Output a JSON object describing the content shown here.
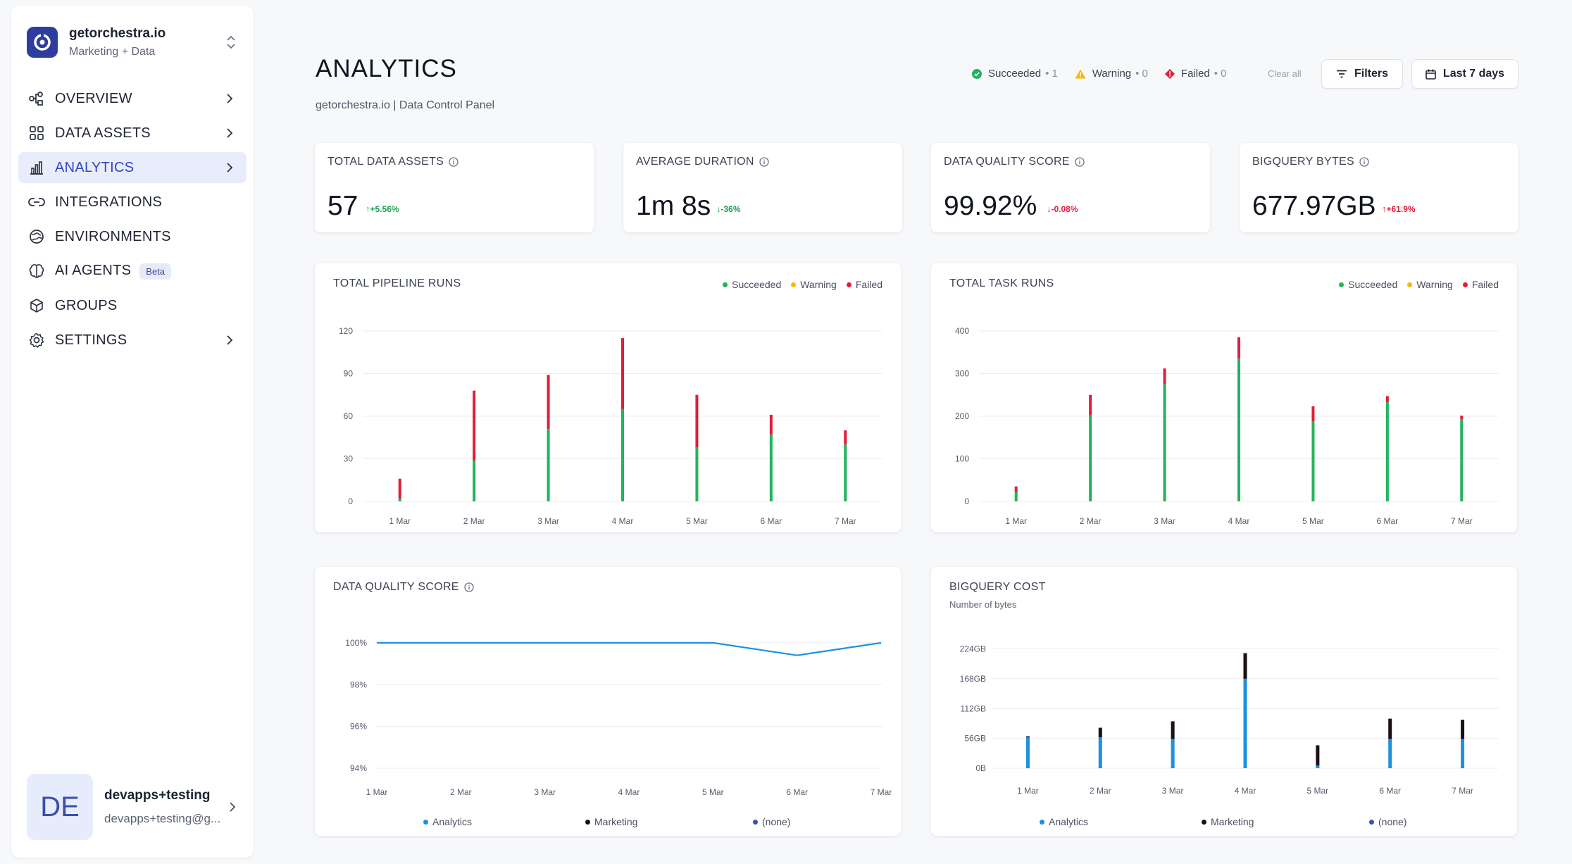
{
  "workspace": {
    "name": "getorchestra.io",
    "subtitle": "Marketing + Data"
  },
  "nav": [
    {
      "label": "OVERVIEW",
      "icon": "overview-icon",
      "has_chevron": true
    },
    {
      "label": "DATA ASSETS",
      "icon": "grid-icon",
      "has_chevron": true
    },
    {
      "label": "ANALYTICS",
      "icon": "bar-chart-icon",
      "has_chevron": true,
      "active": true
    },
    {
      "label": "INTEGRATIONS",
      "icon": "link-icon",
      "has_chevron": false
    },
    {
      "label": "ENVIRONMENTS",
      "icon": "globe-icon",
      "has_chevron": false
    },
    {
      "label": "AI AGENTS",
      "icon": "brain-icon",
      "has_chevron": false,
      "badge": "Beta"
    },
    {
      "label": "GROUPS",
      "icon": "cube-icon",
      "has_chevron": false
    },
    {
      "label": "SETTINGS",
      "icon": "gear-icon",
      "has_chevron": true
    }
  ],
  "user": {
    "initials": "DE",
    "name": "devapps+testing",
    "email": "devapps+testing@g..."
  },
  "header": {
    "title": "ANALYTICS",
    "subtitle": "getorchestra.io | Data Control Panel",
    "status": [
      {
        "label": "Succeeded",
        "count": "• 1",
        "color": "#22b35e"
      },
      {
        "label": "Warning",
        "count": "• 0",
        "color": "#f2b90c"
      },
      {
        "label": "Failed",
        "count": "• 0",
        "color": "#e01e3c"
      }
    ],
    "clear_all": "Clear all",
    "filters_label": "Filters",
    "date_range_label": "Last 7 days"
  },
  "kpis": [
    {
      "label": "TOTAL DATA ASSETS",
      "value": "57",
      "delta": "+5.56%",
      "direction": "up",
      "delta_color": "#1f9d55"
    },
    {
      "label": "AVERAGE DURATION",
      "value": "1m 8s",
      "delta": "-36%",
      "direction": "down",
      "delta_color": "#1f9d55"
    },
    {
      "label": "DATA QUALITY SCORE",
      "value": "99.92%",
      "delta": "-0.08%",
      "direction": "down",
      "delta_color": "#e01e3c"
    },
    {
      "label": "BIGQUERY BYTES",
      "value": "677.97GB",
      "delta": "+61.9%",
      "direction": "up",
      "delta_color": "#e01e3c"
    }
  ],
  "colors": {
    "succeeded": "#22b35e",
    "warning": "#f2b90c",
    "failed": "#e01e3c",
    "analytics": "#1e90e0",
    "marketing": "#1a1015",
    "none": "#3b4fb0",
    "accent": "#3048c4"
  },
  "panels": {
    "pipeline": {
      "title": "TOTAL PIPELINE RUNS",
      "legend": [
        "Succeeded",
        "Warning",
        "Failed"
      ]
    },
    "task": {
      "title": "TOTAL TASK RUNS",
      "legend": [
        "Succeeded",
        "Warning",
        "Failed"
      ]
    },
    "quality": {
      "title": "DATA QUALITY SCORE",
      "legend": [
        "Analytics",
        "Marketing",
        "(none)"
      ]
    },
    "bigquery": {
      "title": "BIGQUERY COST",
      "subtitle": "Number of bytes",
      "legend": [
        "Analytics",
        "Marketing",
        "(none)"
      ]
    }
  },
  "chart_data": [
    {
      "type": "bar",
      "title": "TOTAL PIPELINE RUNS",
      "categories": [
        "1 Mar",
        "2 Mar",
        "3 Mar",
        "4 Mar",
        "5 Mar",
        "6 Mar",
        "7 Mar"
      ],
      "stacked": true,
      "yticks": [
        0,
        30,
        60,
        90,
        120
      ],
      "ylim": [
        0,
        120
      ],
      "series": [
        {
          "name": "Succeeded",
          "values": [
            2,
            29,
            51,
            65,
            38,
            47,
            40
          ]
        },
        {
          "name": "Warning",
          "values": [
            0,
            0,
            0,
            0,
            0,
            0,
            0
          ]
        },
        {
          "name": "Failed",
          "values": [
            14,
            49,
            38,
            50,
            37,
            14,
            10
          ]
        }
      ]
    },
    {
      "type": "bar",
      "title": "TOTAL TASK RUNS",
      "categories": [
        "1 Mar",
        "2 Mar",
        "3 Mar",
        "4 Mar",
        "5 Mar",
        "6 Mar",
        "7 Mar"
      ],
      "stacked": true,
      "yticks": [
        0,
        100,
        200,
        300,
        400
      ],
      "ylim": [
        0,
        400
      ],
      "series": [
        {
          "name": "Succeeded",
          "values": [
            22,
            202,
            275,
            335,
            188,
            233,
            193
          ]
        },
        {
          "name": "Warning",
          "values": [
            0,
            0,
            0,
            0,
            0,
            0,
            0
          ]
        },
        {
          "name": "Failed",
          "values": [
            13,
            48,
            37,
            50,
            35,
            14,
            8
          ]
        }
      ]
    },
    {
      "type": "line",
      "title": "DATA QUALITY SCORE",
      "x": [
        "1 Mar",
        "2 Mar",
        "3 Mar",
        "4 Mar",
        "5 Mar",
        "6 Mar",
        "7 Mar"
      ],
      "yticks": [
        "94%",
        "96%",
        "98%",
        "100%"
      ],
      "ylim": [
        94,
        100.4
      ],
      "series": [
        {
          "name": "Analytics",
          "values": [
            100,
            100,
            100,
            100,
            100,
            99.4,
            100
          ]
        }
      ]
    },
    {
      "type": "bar",
      "title": "BIGQUERY COST",
      "categories": [
        "1 Mar",
        "2 Mar",
        "3 Mar",
        "4 Mar",
        "5 Mar",
        "6 Mar",
        "7 Mar"
      ],
      "stacked": true,
      "yticks": [
        "0B",
        "56GB",
        "112GB",
        "168GB",
        "224GB"
      ],
      "ylim": [
        0,
        230
      ],
      "series": [
        {
          "name": "Analytics",
          "values": [
            58,
            58,
            55,
            168,
            5,
            55,
            55
          ]
        },
        {
          "name": "Marketing",
          "values": [
            2,
            18,
            33,
            48,
            38,
            38,
            36
          ]
        },
        {
          "name": "(none)",
          "values": [
            0,
            0,
            0,
            0,
            0,
            0,
            0
          ]
        }
      ]
    }
  ]
}
